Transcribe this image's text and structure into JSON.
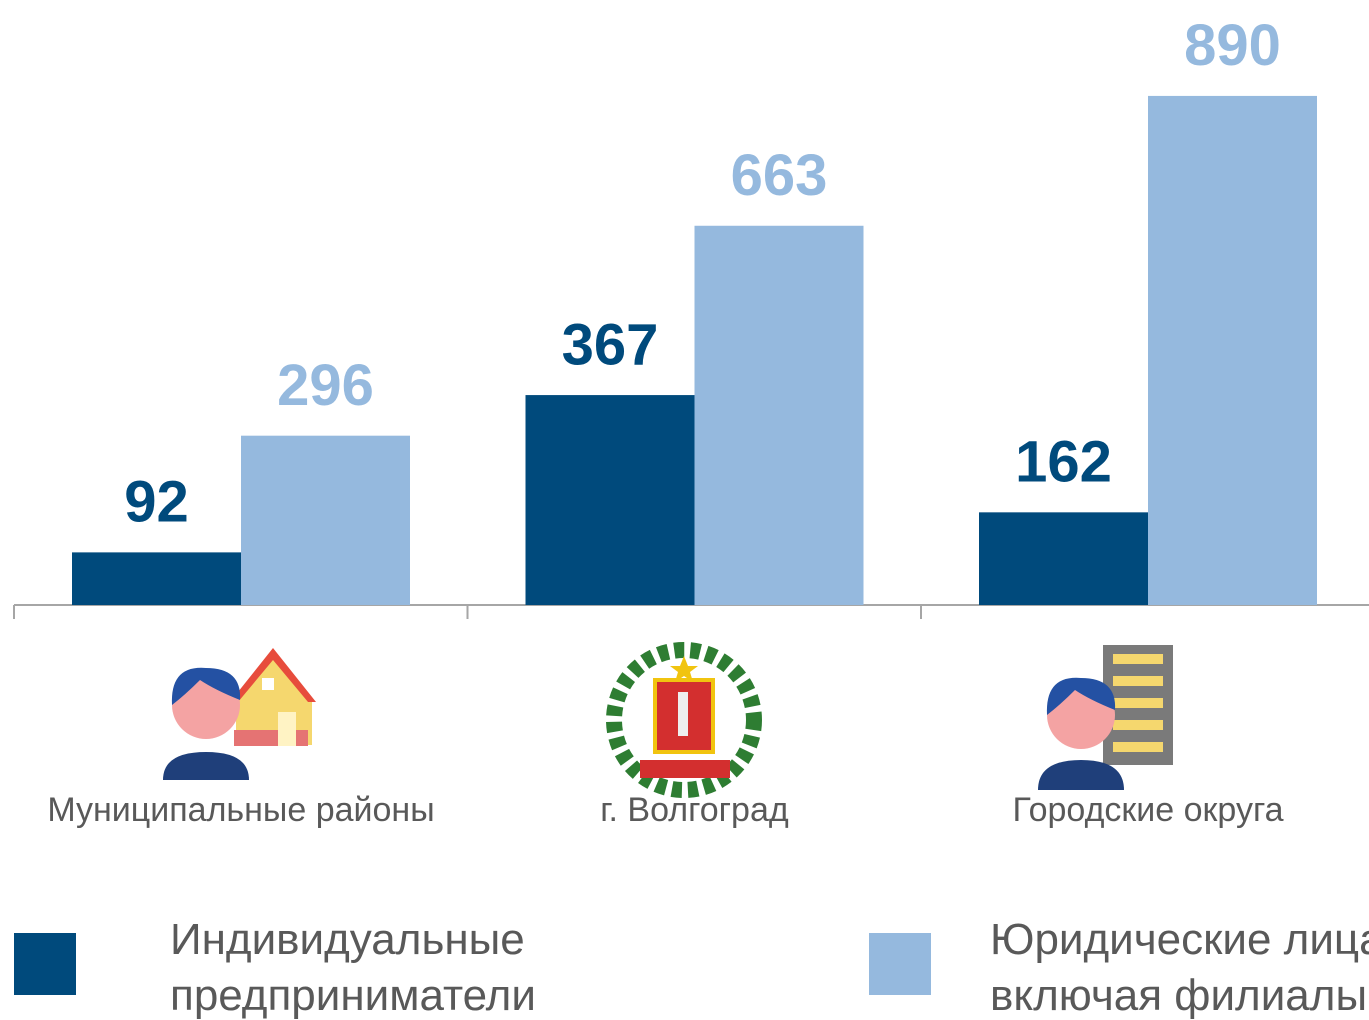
{
  "chart_data": {
    "type": "bar",
    "categories": [
      "Муниципальные  районы",
      "г. Волгоград",
      "Городские  округа"
    ],
    "series": [
      {
        "name": "Индивидуальные предприниматели",
        "color": "#004a7c",
        "values": [
          92,
          367,
          162
        ]
      },
      {
        "name": "Юридические лица, включая филиалы",
        "color": "#95b9de",
        "values": [
          296,
          663,
          890
        ]
      }
    ],
    "ylim": [
      0,
      1000
    ]
  }
}
